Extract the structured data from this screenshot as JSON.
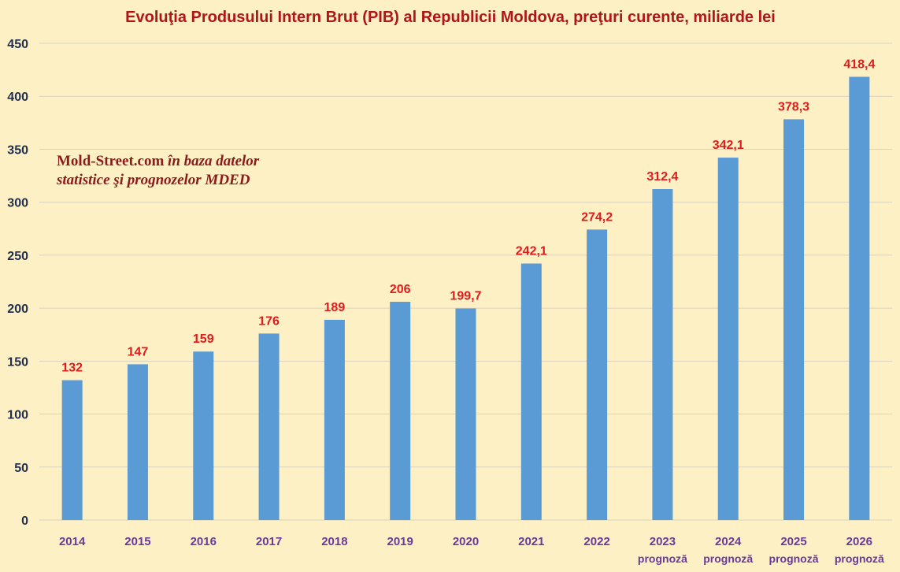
{
  "chart_data": {
    "type": "bar",
    "title": "Evoluţia Produsului Intern Brut (PIB) al Republicii Moldova, preţuri curente, miliarde lei",
    "categories": [
      "2014",
      "2015",
      "2016",
      "2017",
      "2018",
      "2019",
      "2020",
      "2021",
      "2022",
      "2023",
      "2024",
      "2025",
      "2026"
    ],
    "category_sublabels": [
      "",
      "",
      "",
      "",
      "",
      "",
      "",
      "",
      "",
      "prognoză",
      "prognoză",
      "prognoză",
      "prognoză"
    ],
    "values": [
      132,
      147,
      159,
      176,
      189,
      206,
      199.7,
      242.1,
      274.2,
      312.4,
      342.1,
      378.3,
      418.4
    ],
    "data_labels": [
      "132",
      "147",
      "159",
      "176",
      "189",
      "206",
      "199,7",
      "242,1",
      "274,2",
      "312,4",
      "342,1",
      "378,3",
      "418,4"
    ],
    "ylim": [
      0,
      450
    ],
    "yticks": [
      0,
      50,
      100,
      150,
      200,
      250,
      300,
      350,
      400,
      450
    ],
    "grid": true,
    "legend": "none",
    "xlabel": "",
    "ylabel": "",
    "annotation": {
      "line1_regular": "Mold-Street.com ",
      "line1_italic": "în baza datelor",
      "line2_italic": "statistice şi prognozelor MDED"
    },
    "colors": {
      "bar": "#5b9bd5",
      "background": "#fdf0c5",
      "title": "#b0151a",
      "data_label": "#e01b1b",
      "x_tick": "#6a3a9a",
      "y_tick": "#1f2d4f"
    }
  }
}
